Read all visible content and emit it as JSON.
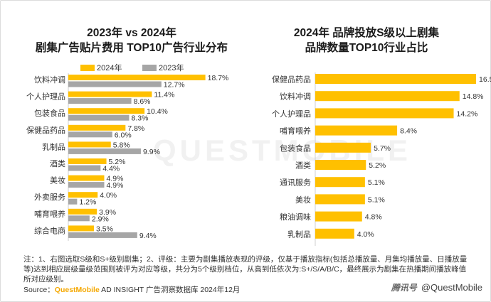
{
  "left_chart": {
    "title_line1": "2023年 vs 2024年",
    "title_line2": "剧集广告贴片费用 TOP10广告行业分布",
    "legend": [
      "2024年",
      "2023年"
    ]
  },
  "right_chart": {
    "title_line1": "2024年 品牌投放S级以上剧集",
    "title_line2": "品牌数量TOP10行业占比"
  },
  "colors": {
    "primary": "#FFC000",
    "secondary": "#A6A6A6",
    "brand": "#F5A800"
  },
  "watermark": "QUESTMOBILE",
  "note": "注：1、右图选取S级和S+级别剧集；2、评级：主要为剧集播放表现的评级，仅基于播放指标(包括总播放量、月集均播放量、日播放量等)达到相应层级量级范围则被评为对应等级，共分为5个级别档位，从高到低依次为:S+/S/A/B/C，最终展示为剧集在热播期间播放峰值所对应级别。",
  "source": {
    "prefix": "Source：",
    "brand": "QuestMobile",
    "rest": " AD INSIGHT 广告洞察数据库 2024年12月"
  },
  "footer": {
    "handle": "@QuestMobile",
    "platform": "腾讯号"
  },
  "chart_data": [
    {
      "type": "bar",
      "orientation": "horizontal",
      "title": "2023年 vs 2024年 剧集广告贴片费用 TOP10广告行业分布",
      "categories": [
        "饮料冲调",
        "个人护理品",
        "包装食品",
        "保健品药品",
        "乳制品",
        "酒类",
        "美妆",
        "外卖服务",
        "哺育喂养",
        "综合电商"
      ],
      "series": [
        {
          "name": "2024年",
          "values": [
            18.7,
            11.4,
            10.4,
            7.8,
            5.8,
            5.2,
            4.9,
            4.0,
            3.9,
            3.5
          ]
        },
        {
          "name": "2023年",
          "values": [
            12.7,
            8.6,
            8.3,
            6.0,
            9.9,
            4.4,
            4.9,
            1.2,
            2.9,
            9.4
          ]
        }
      ],
      "value_suffix": "%",
      "legend": "top-left"
    },
    {
      "type": "bar",
      "orientation": "horizontal",
      "title": "2024年 品牌投放S级以上剧集 品牌数量TOP10行业占比",
      "categories": [
        "保健品药品",
        "饮料冲调",
        "个人护理品",
        "哺育喂养",
        "包装食品",
        "酒类",
        "通讯服务",
        "美妆",
        "粮油调味",
        "乳制品"
      ],
      "series": [
        {
          "name": "2024年",
          "values": [
            16.5,
            14.8,
            14.2,
            8.4,
            5.7,
            5.2,
            5.1,
            5.1,
            4.8,
            4.0
          ]
        }
      ],
      "value_suffix": "%"
    }
  ]
}
